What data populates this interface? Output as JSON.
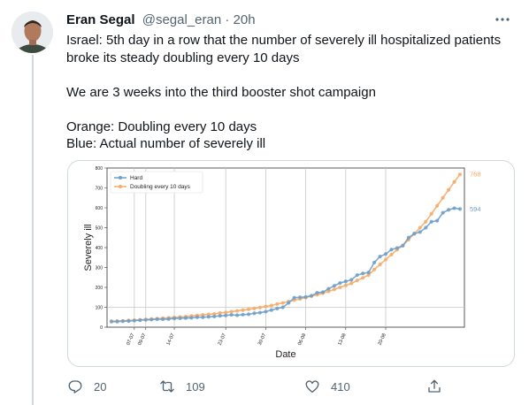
{
  "author": {
    "name": "Eran Segal",
    "handle": "@segal_eran",
    "separator": "·",
    "time": "20h"
  },
  "tweet": {
    "paragraphs": [
      [
        "Israel: 5th day in a row that the number of severely ill hospitalized patients",
        "broke its steady doubling every 10 days"
      ],
      [
        "We are 3 weeks into the third booster shot campaign"
      ],
      [
        "Orange: Doubling every 10 days",
        "Blue: Actual number of severely ill"
      ]
    ]
  },
  "actions": {
    "replies": "20",
    "retweets": "109",
    "likes": "410"
  },
  "icons": {
    "more": "more-horizontal-icon",
    "reply": "reply-icon",
    "retweet": "retweet-icon",
    "like": "heart-icon",
    "share": "share-icon"
  },
  "colors": {
    "hard": "#6f9fca",
    "doubling": "#f5ac69",
    "text_secondary": "#536471"
  },
  "chart_data": {
    "type": "line",
    "xlabel": "Date",
    "ylabel": "Severely ill",
    "xticks": [
      "07-07",
      "09-07",
      "14-07",
      "23-07",
      "30-07",
      "06-08",
      "13-08",
      "20-08"
    ],
    "yticks": [
      "0",
      "100",
      "200",
      "300",
      "400",
      "500",
      "600",
      "700",
      "800"
    ],
    "ylim": [
      0,
      800
    ],
    "grid": "vertical lines at x ticks and horizontal line at 100",
    "legend_placement": "top-left",
    "end_labels": [
      "768",
      "594"
    ],
    "x_start": "2021-07-03",
    "series": [
      {
        "name": "Hard",
        "color": "#6f9fca",
        "values": [
          28,
          28,
          30,
          31,
          33,
          35,
          37,
          38,
          40,
          40,
          41,
          44,
          45,
          46,
          47,
          50,
          50,
          52,
          54,
          57,
          59,
          62,
          60,
          63,
          65,
          70,
          73,
          78,
          86,
          94,
          100,
          122,
          148,
          150,
          152,
          158,
          173,
          176,
          193,
          208,
          222,
          230,
          238,
          262,
          270,
          275,
          325,
          355,
          368,
          390,
          398,
          410,
          450,
          470,
          478,
          500,
          530,
          535,
          575,
          590,
          598,
          594
        ]
      },
      {
        "name": "Doubling every 10 days",
        "color": "#f5ac69",
        "values": [
          30,
          31,
          32,
          34,
          35,
          37,
          39,
          41,
          43,
          45,
          47,
          49,
          51,
          53,
          56,
          59,
          62,
          64,
          67,
          71,
          74,
          78,
          82,
          86,
          90,
          94,
          99,
          104,
          109,
          116,
          122,
          129,
          136,
          142,
          149,
          156,
          163,
          171,
          180,
          190,
          200,
          210,
          220,
          235,
          248,
          262,
          290,
          315,
          340,
          365,
          390,
          410,
          440,
          470,
          500,
          530,
          570,
          610,
          650,
          690,
          730,
          768
        ]
      }
    ]
  }
}
